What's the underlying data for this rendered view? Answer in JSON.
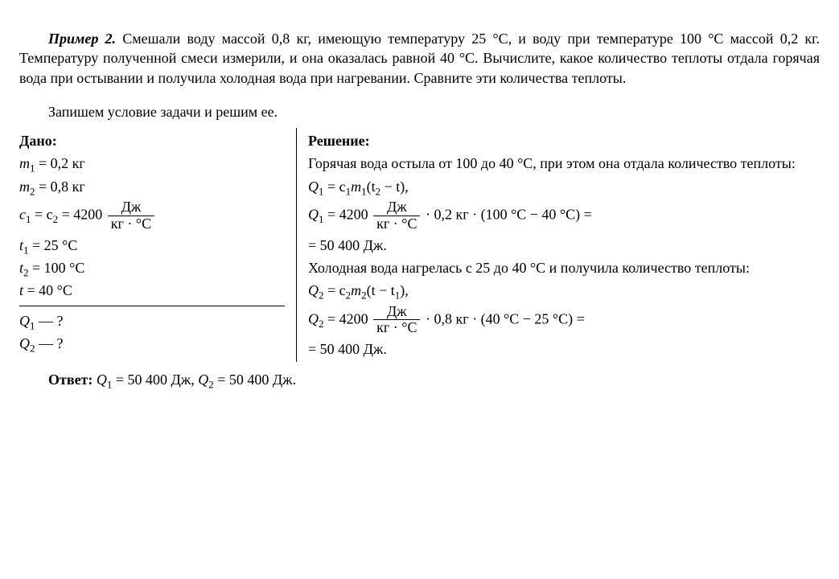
{
  "problem": {
    "label": "Пример 2.",
    "text1": "Смешали воду массой 0,8 кг, имеющую температуру 25 °C, и воду при температуре 100 °C массой 0,2 кг. Температуру полученной смеси измерили, и она оказалась равной 40 °C. Вычислите, какое количество теплоты отдала горячая вода при остывании и получила холодная вода при нагревании. Сравните эти количества теплоты.",
    "text2": "Запишем условие задачи и решим ее."
  },
  "given": {
    "title": "Дано:",
    "rows": {
      "m1_lhs": "m",
      "m1_sub": "1",
      "m1_rhs": " = 0,2 кг",
      "m2_lhs": "m",
      "m2_sub": "2",
      "m2_rhs": " = 0,8 кг",
      "c_lhs": "c",
      "c_sub1": "1",
      "c_mid": " = c",
      "c_sub2": "2",
      "c_eq": " = 4200 ",
      "c_num": "Дж",
      "c_den": "кг · °C",
      "t1_lhs": "t",
      "t1_sub": "1",
      "t1_rhs": " = 25 °C",
      "t2_lhs": "t",
      "t2_sub": "2",
      "t2_rhs": " = 100 °C",
      "t_lhs": "t",
      "t_rhs": " = 40 °C",
      "q1": "Q",
      "q1_sub": "1",
      "q1_tail": " — ?",
      "q2": "Q",
      "q2_sub": "2",
      "q2_tail": " — ?"
    }
  },
  "solution": {
    "title": "Решение:",
    "s1": "Горячая вода остыла от 100 до 40 °C, при этом она отдала количество теплоты:",
    "q1f_lhs": "Q",
    "q1f_sub": "1",
    "q1f_rhs": " = c",
    "q1f_csub": "1",
    "q1f_m": "m",
    "q1f_msub": "1",
    "q1f_par": "(t",
    "q1f_tsub": "2",
    "q1f_end": " − t),",
    "q1n_lhs": "Q",
    "q1n_sub": "1",
    "q1n_eq": " = 4200 ",
    "q1n_num": "Дж",
    "q1n_den": "кг · °C",
    "q1n_tail": " · 0,2 кг · (100 °C − 40 °C) =",
    "q1n_res": "= 50 400 Дж.",
    "s2": "Холодная вода нагрелась с 25 до 40 °C и получила количество теплоты:",
    "q2f_lhs": "Q",
    "q2f_sub": "2",
    "q2f_rhs": " = c",
    "q2f_csub": "2",
    "q2f_m": "m",
    "q2f_msub": "2",
    "q2f_par": "(t − t",
    "q2f_tsub": "1",
    "q2f_end": "),",
    "q2n_lhs": "Q",
    "q2n_sub": "2",
    "q2n_eq": " = 4200 ",
    "q2n_num": "Дж",
    "q2n_den": "кг · °C",
    "q2n_tail": " · 0,8 кг · (40 °C − 25 °C) =",
    "q2n_res": "= 50 400 Дж."
  },
  "answer": {
    "label": "Ответ: ",
    "q1": "Q",
    "q1_sub": "1",
    "q1_val": " = 50 400 Дж, ",
    "q2": "Q",
    "q2_sub": "2",
    "q2_val": " = 50 400 Дж."
  }
}
